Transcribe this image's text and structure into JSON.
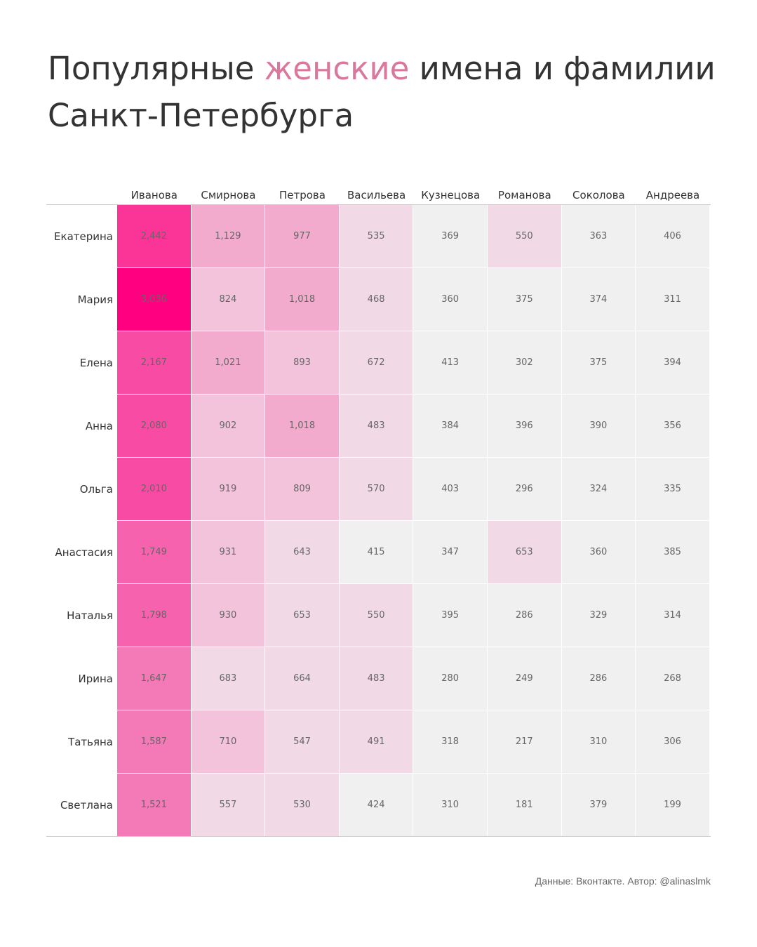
{
  "title": {
    "part1": "Популярные ",
    "accent": "женские",
    "part2": " имена и фамилии Санкт-Петербурга",
    "accent_color": "#d9779c"
  },
  "footer": "Данные: Вконтакте. Автор: @alinaslmk",
  "chart_data": {
    "type": "heatmap",
    "title": "Популярные женские имена и фамилии Санкт-Петербурга",
    "x_categories": [
      "Иванова",
      "Смирнова",
      "Петрова",
      "Васильева",
      "Кузнецова",
      "Романова",
      "Соколова",
      "Андреева"
    ],
    "y_categories": [
      "Екатерина",
      "Мария",
      "Елена",
      "Анна",
      "Ольга",
      "Анастасия",
      "Наталья",
      "Ирина",
      "Татьяна",
      "Светлана"
    ],
    "values": [
      [
        2442,
        1129,
        977,
        535,
        369,
        550,
        363,
        406
      ],
      [
        3036,
        824,
        1018,
        468,
        360,
        375,
        374,
        311
      ],
      [
        2167,
        1021,
        893,
        672,
        413,
        302,
        375,
        394
      ],
      [
        2080,
        902,
        1018,
        483,
        384,
        396,
        390,
        356
      ],
      [
        2010,
        919,
        809,
        570,
        403,
        296,
        324,
        335
      ],
      [
        1749,
        931,
        643,
        415,
        347,
        653,
        360,
        385
      ],
      [
        1798,
        930,
        653,
        550,
        395,
        286,
        329,
        314
      ],
      [
        1647,
        683,
        664,
        483,
        280,
        249,
        286,
        268
      ],
      [
        1587,
        710,
        547,
        491,
        318,
        217,
        310,
        306
      ],
      [
        1521,
        557,
        530,
        424,
        310,
        181,
        379,
        199
      ]
    ],
    "color_scale": {
      "low": "#f0f0f0",
      "high": "#ff0080",
      "stepped": true
    },
    "legend": "none"
  }
}
